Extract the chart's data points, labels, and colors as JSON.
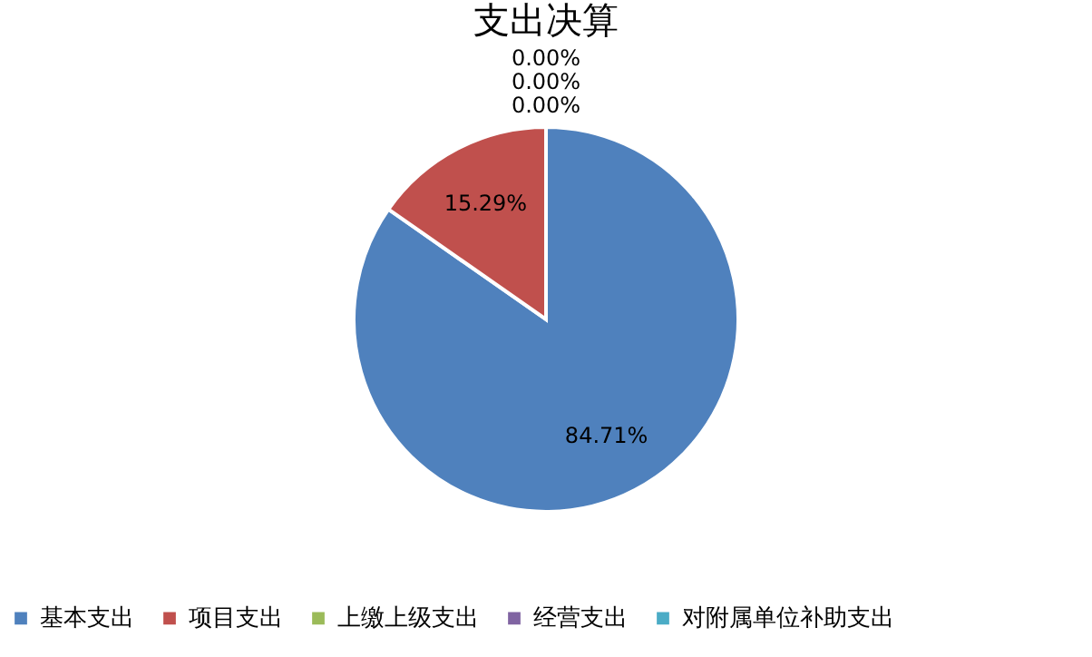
{
  "chart_data": {
    "type": "pie",
    "title": "支出决算",
    "categories": [
      "基本支出",
      "项目支出",
      "上缴上级支出",
      "经营支出",
      "对附属单位补助支出"
    ],
    "values": [
      84.71,
      15.29,
      0,
      0,
      0
    ],
    "colors": [
      "#4f81bd",
      "#c0504d",
      "#9bbb59",
      "#8064a2",
      "#4bacc6"
    ],
    "value_labels": [
      "84.71%",
      "15.29%",
      "0.00%",
      "0.00%",
      "0.00%"
    ],
    "legend": "bottom"
  }
}
